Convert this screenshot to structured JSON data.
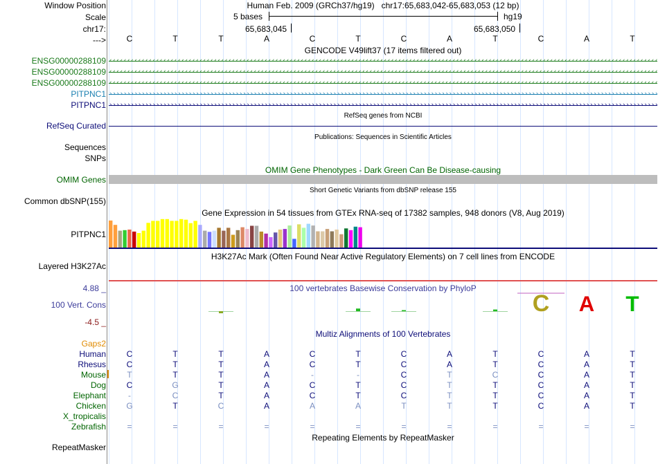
{
  "header": {
    "window_position_label": "Window Position",
    "scale_label": "Scale",
    "chrom_label": "chr17:",
    "strand_label": "--->",
    "position_text": "Human Feb. 2009 (GRCh37/hg19)   chr17:65,683,042-65,683,053 (12 bp)",
    "scale_text": "5 bases",
    "assembly": "hg19",
    "coord_left": "65,683,045",
    "coord_right": "65,683,050"
  },
  "sequence": [
    "C",
    "T",
    "T",
    "A",
    "C",
    "T",
    "C",
    "A",
    "T",
    "C",
    "A",
    "T"
  ],
  "gencode": {
    "title": "GENCODE V49lift37 (17 items filtered out)",
    "rows": [
      {
        "label": "ENSG00000288109",
        "color": "#1a7a1a",
        "dir": "‹"
      },
      {
        "label": "ENSG00000288109",
        "color": "#1a7a1a",
        "dir": "‹"
      },
      {
        "label": "ENSG00000288109",
        "color": "#1a7a1a",
        "dir": "‹"
      },
      {
        "label": "PITPNC1",
        "color": "#1a7fb0",
        "dir": "›"
      },
      {
        "label": "PITPNC1",
        "color": "#0c0c78",
        "dir": "›"
      }
    ]
  },
  "refseq": {
    "title": "RefSeq genes from NCBI",
    "label": "RefSeq Curated"
  },
  "publications": {
    "title": "Publications: Sequences in Scientific Articles",
    "label1": "Sequences",
    "label2": "SNPs"
  },
  "omim": {
    "title": "OMIM Gene Phenotypes - Dark Green Can Be Disease-causing",
    "label": "OMIM Genes"
  },
  "dbsnp": {
    "title": "Short Genetic Variants from dbSNP release 155",
    "label": "Common dbSNP(155)"
  },
  "gtex": {
    "title": "Gene Expression in 54 tissues from GTEx RNA-seq of 17382 samples, 948 donors (V8, Aug 2019)",
    "label": "PITPNC1",
    "values": [
      0.93,
      0.78,
      0.58,
      0.6,
      0.62,
      0.55,
      0.5,
      0.58,
      0.85,
      0.92,
      0.92,
      0.98,
      0.98,
      0.92,
      0.92,
      0.98,
      0.96,
      0.84,
      0.92,
      0.78,
      0.58,
      0.54,
      0.58,
      0.68,
      0.58,
      0.68,
      0.44,
      0.6,
      0.7,
      0.64,
      0.75,
      0.75,
      0.55,
      0.48,
      0.36,
      0.52,
      0.62,
      0.64,
      0.76,
      0.3,
      0.8,
      0.68,
      0.82,
      0.76,
      0.56,
      0.56,
      0.64,
      0.56,
      0.62,
      0.46,
      0.66,
      0.6,
      0.72,
      0.7
    ],
    "colors": [
      "#ff9f3c",
      "#ff9f3c",
      "#aaa580",
      "#33cc33",
      "#ee6644",
      "#cc0000",
      "#ffff00",
      "#ffff00",
      "#ffff00",
      "#ffff00",
      "#ffff00",
      "#ffff00",
      "#ffff00",
      "#ffff00",
      "#ffff00",
      "#ffff00",
      "#ffff00",
      "#ffff00",
      "#ffff00",
      "#aaaaff",
      "#aaaaaa",
      "#7777ff",
      "#ccddff",
      "#a7792f",
      "#996655",
      "#aa7744",
      "#cd9b1d",
      "#9a8255",
      "#dd8866",
      "#eebbcc",
      "#884444",
      "#aaaaaa",
      "#bb8b2a",
      "#b02ea8",
      "#cc66ff",
      "#6655aa",
      "#e6c47a",
      "#9933cc",
      "#aaee99",
      "#4466ff",
      "#dddd66",
      "#aaffaa",
      "#a0d8ff",
      "#b2b2b2",
      "#d2b48c",
      "#dcc9a8",
      "#c8a078",
      "#8f7a5a",
      "#e1c9a0",
      "#cc9977",
      "#117733",
      "#ff00ff",
      "#008888",
      "#ee00ee"
    ]
  },
  "h3k27ac": {
    "title": "H3K27Ac Mark (Often Found Near Active Regulatory Elements) on 7 cell lines from ENCODE",
    "label": "Layered H3K27Ac"
  },
  "phylop": {
    "title": "100 vertebrates Basewise Conservation by PhyloP",
    "label": "100 Vert. Cons",
    "ymax": "4.88 _",
    "ymin": "-4.5 _",
    "values": [
      0,
      0,
      -0.25,
      0,
      0,
      0.32,
      0.12,
      0,
      0.2,
      4.88,
      4.1,
      4.2
    ]
  },
  "multiz": {
    "title": "Multiz Alignments of 100 Vertebrates",
    "gaps_label": "Gaps2",
    "species": [
      {
        "name": "Human",
        "bases": [
          "C",
          "T",
          "T",
          "A",
          "C",
          "T",
          "C",
          "A",
          "T",
          "C",
          "A",
          "T"
        ],
        "dim": [
          0,
          0,
          0,
          0,
          0,
          0,
          0,
          0,
          0,
          0,
          0,
          0
        ]
      },
      {
        "name": "Rhesus",
        "bases": [
          "C",
          "T",
          "T",
          "A",
          "C",
          "T",
          "C",
          "A",
          "T",
          "C",
          "A",
          "T"
        ],
        "dim": [
          0,
          0,
          0,
          0,
          0,
          0,
          0,
          0,
          0,
          0,
          0,
          0
        ]
      },
      {
        "name": "Mouse",
        "bases": [
          "T",
          "T",
          "T",
          "A",
          "-",
          "-",
          "C",
          "T",
          "C",
          "C",
          "A",
          "T"
        ],
        "dim": [
          1,
          0,
          0,
          0,
          1,
          1,
          0,
          1,
          1,
          0,
          0,
          0
        ]
      },
      {
        "name": "Dog",
        "bases": [
          "C",
          "G",
          "T",
          "A",
          "C",
          "T",
          "C",
          "T",
          "T",
          "C",
          "A",
          "T"
        ],
        "dim": [
          0,
          1,
          0,
          0,
          0,
          0,
          0,
          1,
          0,
          0,
          0,
          0
        ]
      },
      {
        "name": "Elephant",
        "bases": [
          "-",
          "C",
          "T",
          "A",
          "C",
          "T",
          "C",
          "T",
          "T",
          "C",
          "A",
          "T"
        ],
        "dim": [
          1,
          1,
          0,
          0,
          0,
          0,
          0,
          1,
          0,
          0,
          0,
          0
        ]
      },
      {
        "name": "Chicken",
        "bases": [
          "G",
          "T",
          "C",
          "A",
          "A",
          "A",
          "T",
          "T",
          "T",
          "C",
          "A",
          "T"
        ],
        "dim": [
          1,
          0,
          1,
          0,
          1,
          1,
          1,
          1,
          0,
          0,
          0,
          0
        ]
      },
      {
        "name": "X_tropicalis",
        "bases": [
          "",
          "",
          "",
          "",
          "",
          "",
          "",
          "",
          "",
          "",
          "",
          ""
        ],
        "dim": [
          0,
          0,
          0,
          0,
          0,
          0,
          0,
          0,
          0,
          0,
          0,
          0
        ]
      },
      {
        "name": "Zebrafish",
        "bases": [
          "=",
          "=",
          "=",
          "=",
          "=",
          "=",
          "=",
          "=",
          "=",
          "=",
          "=",
          "="
        ],
        "dim": [
          1,
          1,
          1,
          1,
          1,
          1,
          1,
          1,
          1,
          1,
          1,
          1
        ]
      }
    ]
  },
  "repeatmasker": {
    "title": "Repeating Elements by RepeatMasker",
    "label": "RepeatMasker"
  },
  "colors": {
    "navy": "#0c0c78",
    "dark_green": "#006400",
    "gaps": "#e08a00",
    "phylop_label": "#3b3b9a",
    "h3k27ac_line": "#e05050"
  }
}
